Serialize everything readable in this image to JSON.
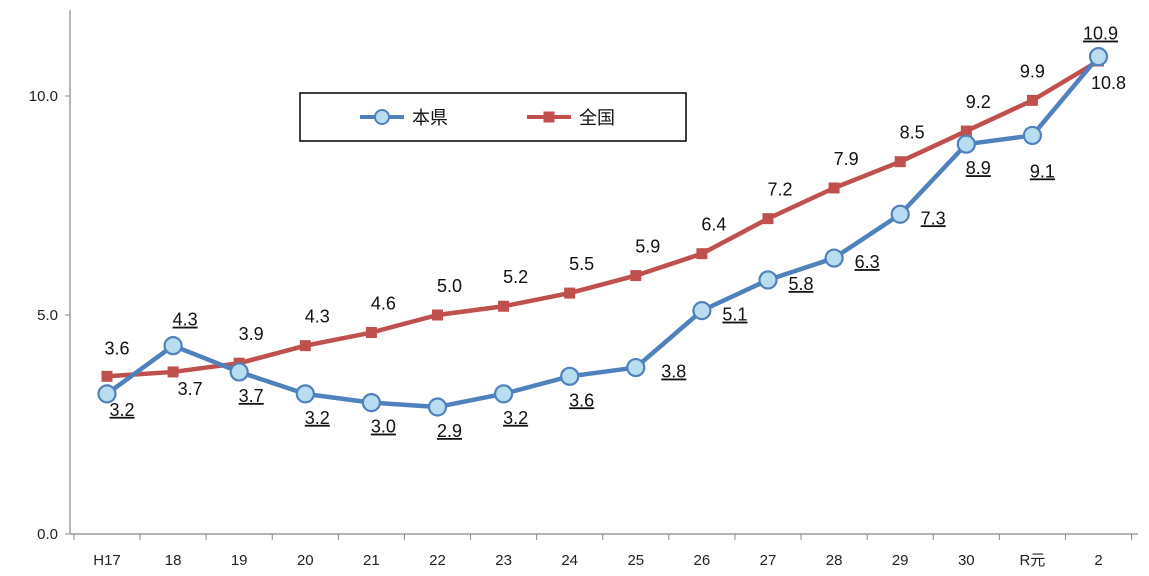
{
  "chart_data": {
    "type": "line",
    "categories": [
      "H17",
      "18",
      "19",
      "20",
      "21",
      "22",
      "23",
      "24",
      "25",
      "26",
      "27",
      "28",
      "29",
      "30",
      "R元",
      "2"
    ],
    "ylim": [
      0,
      12
    ],
    "y_ticks": [
      "0.0",
      "5.0",
      "10.0"
    ],
    "y_tick_values": [
      0,
      5,
      10
    ],
    "grid": false,
    "legend_position": "top-center",
    "series": [
      {
        "name": "本県",
        "color": "#4F81BD",
        "marker_fill": "#B9DDF0",
        "marker": "circle",
        "labels_underlined": true,
        "values": [
          3.2,
          4.3,
          3.7,
          3.2,
          3.0,
          2.9,
          3.2,
          3.6,
          3.8,
          5.1,
          5.8,
          6.3,
          7.3,
          8.9,
          9.1,
          10.9
        ],
        "labels": [
          "3.2",
          "4.3",
          "3.7",
          "3.2",
          "3.0",
          "2.9",
          "3.2",
          "3.6",
          "3.8",
          "5.1",
          "5.8",
          "6.3",
          "7.3",
          "8.9",
          "9.1",
          "10.9"
        ]
      },
      {
        "name": "全国",
        "color": "#C0504D",
        "marker": "square",
        "labels_underlined": false,
        "values": [
          3.6,
          3.7,
          3.9,
          4.3,
          4.6,
          5.0,
          5.2,
          5.5,
          5.9,
          6.4,
          7.2,
          7.9,
          8.5,
          9.2,
          9.9,
          10.8
        ],
        "labels": [
          "3.6",
          "3.7",
          "3.9",
          "4.3",
          "4.6",
          "5.0",
          "5.2",
          "5.5",
          "5.9",
          "6.4",
          "7.2",
          "7.9",
          "8.5",
          "9.2",
          "9.9",
          "10.8"
        ]
      }
    ]
  }
}
